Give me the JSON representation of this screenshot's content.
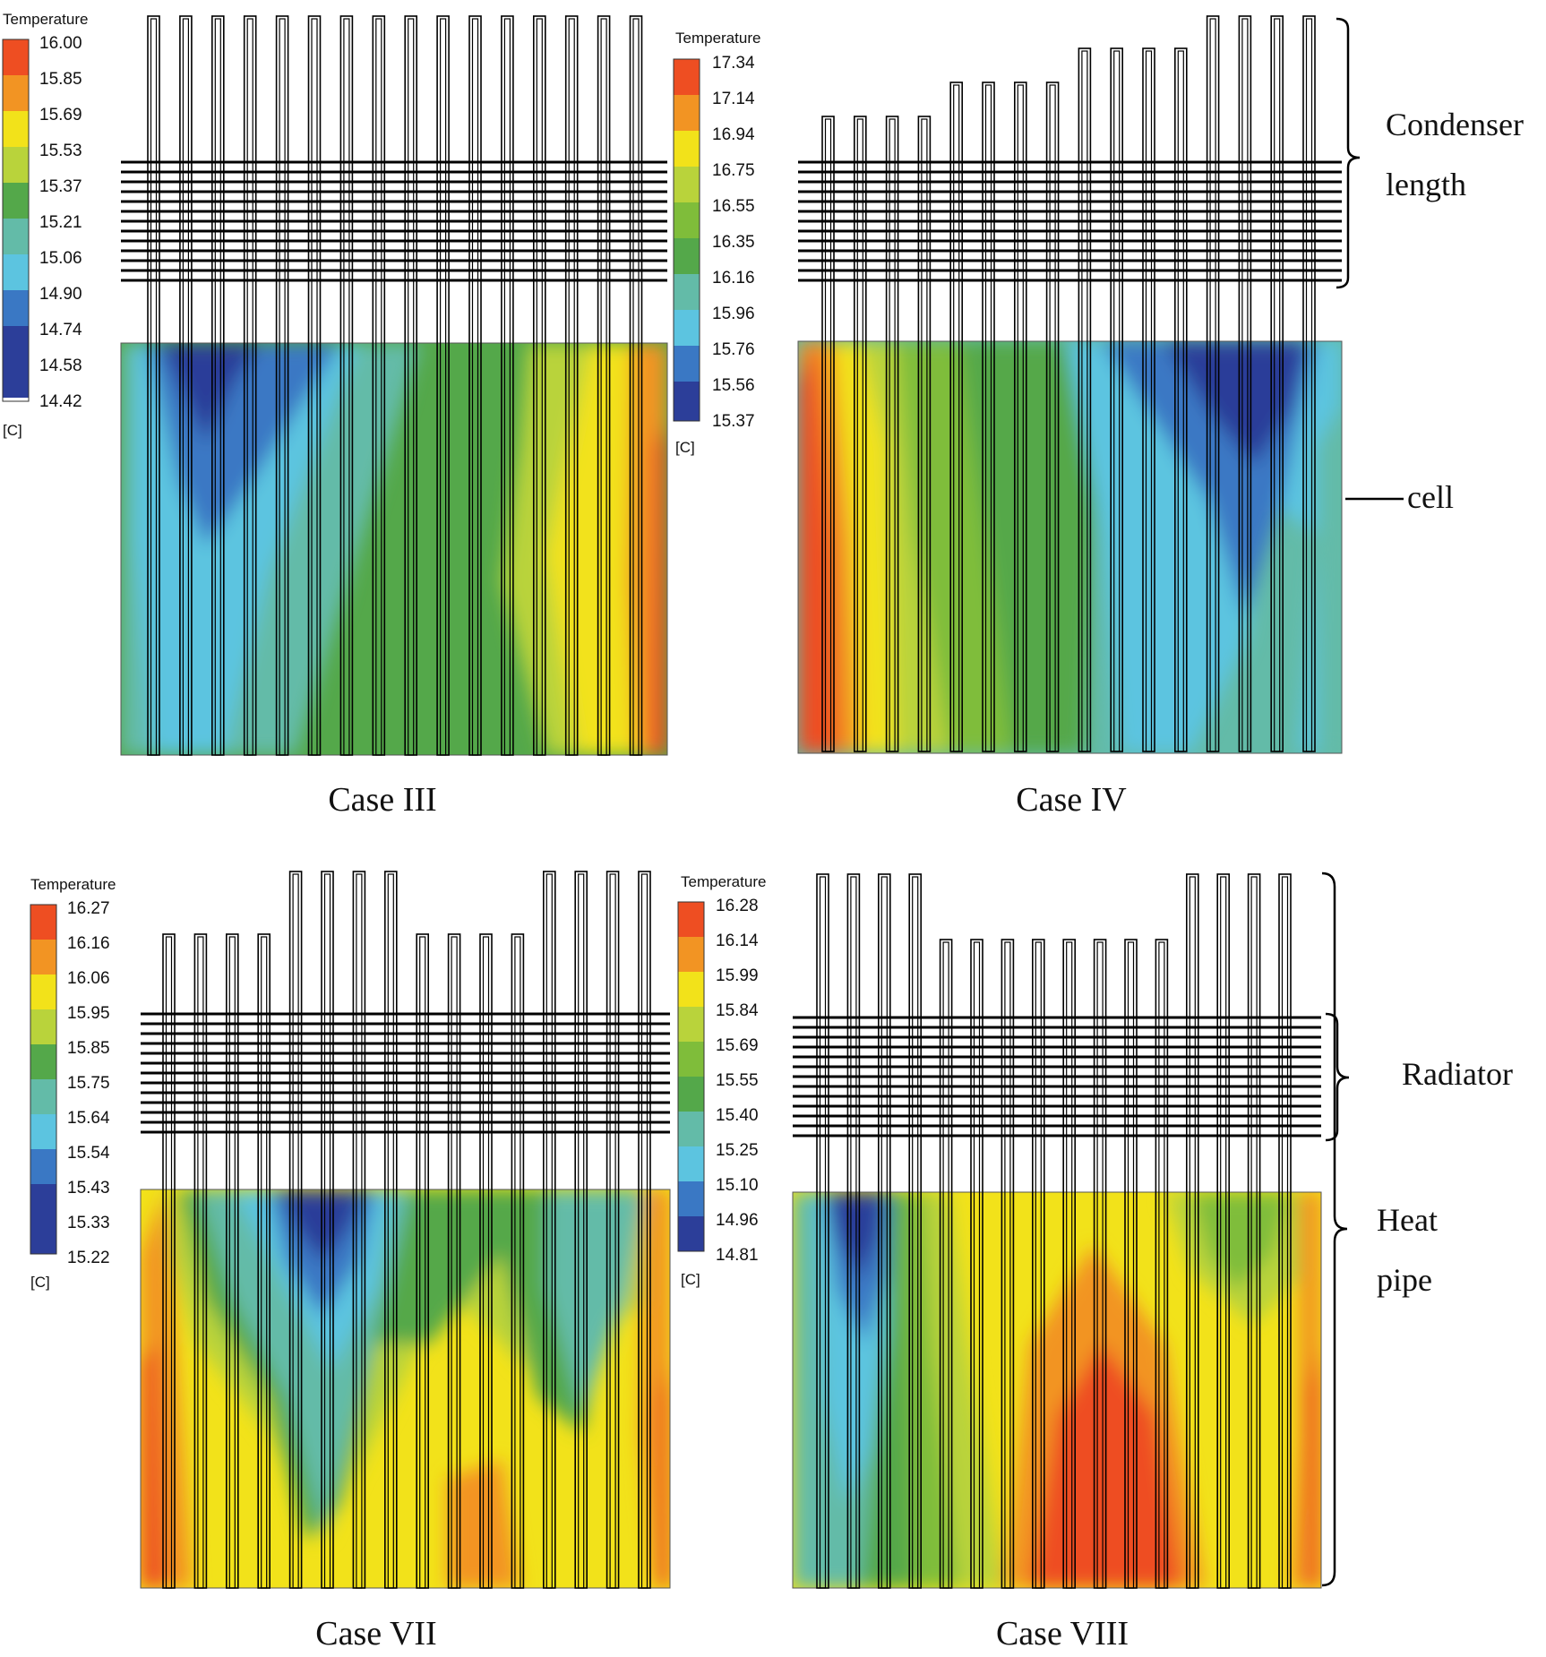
{
  "legend_colors": [
    "#2c3e99",
    "#3a78c4",
    "#5cc4e0",
    "#63bba8",
    "#54a84a",
    "#7fbd3a",
    "#b9d33b",
    "#f2e21a",
    "#f5b518",
    "#f29423",
    "#ee4e22"
  ],
  "panels": [
    {
      "id": "case-iii",
      "case_label": "Case III",
      "legend": {
        "title": "Temperature",
        "unit": "[C]",
        "ticks": [
          "16.00",
          "15.85",
          "15.69",
          "15.53",
          "15.37",
          "15.21",
          "15.06",
          "14.90",
          "14.74",
          "14.58",
          "14.42"
        ]
      },
      "pipe_condenser_levels": [
        3,
        3,
        3,
        3,
        3,
        3,
        3,
        3,
        3,
        3,
        3,
        3,
        3,
        3,
        3,
        3
      ]
    },
    {
      "id": "case-iv",
      "case_label": "Case IV",
      "legend": {
        "title": "Temperature",
        "unit": "[C]",
        "ticks": [
          "17.34",
          "17.14",
          "16.94",
          "16.75",
          "16.55",
          "16.35",
          "16.16",
          "15.96",
          "15.76",
          "15.56",
          "15.37"
        ]
      },
      "pipe_condenser_levels": [
        0,
        0,
        0,
        0,
        1,
        1,
        1,
        1,
        2,
        2,
        2,
        2,
        3,
        3,
        3,
        3
      ]
    },
    {
      "id": "case-vii",
      "case_label": "Case VII",
      "legend": {
        "title": "Temperature",
        "unit": "[C]",
        "ticks": [
          "16.27",
          "16.16",
          "16.06",
          "15.95",
          "15.85",
          "15.75",
          "15.64",
          "15.54",
          "15.43",
          "15.33",
          "15.22"
        ]
      },
      "pipe_condenser_levels": [
        0,
        0,
        0,
        0,
        1,
        1,
        1,
        1,
        0,
        0,
        0,
        0,
        1,
        1,
        1,
        1
      ]
    },
    {
      "id": "case-viii",
      "case_label": "Case VIII",
      "legend": {
        "title": "Temperature",
        "unit": "[C]",
        "ticks": [
          "16.28",
          "16.14",
          "15.99",
          "15.84",
          "15.69",
          "15.55",
          "15.40",
          "15.25",
          "15.10",
          "14.96",
          "14.81"
        ]
      },
      "pipe_condenser_levels": [
        1,
        1,
        1,
        1,
        0,
        0,
        0,
        0,
        0,
        0,
        0,
        0,
        1,
        1,
        1,
        1
      ]
    }
  ],
  "annotations": {
    "condenser_length": [
      "Condenser",
      "length"
    ],
    "cell": "cell",
    "radiator": "Radiator",
    "heat_pipe": [
      "Heat",
      "pipe"
    ]
  }
}
